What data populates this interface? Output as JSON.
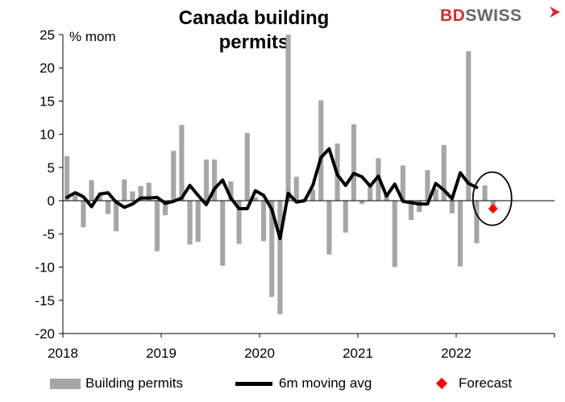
{
  "header": {
    "title": "Canada building permits",
    "logo_text_red": "BD",
    "logo_text_gray": "SWISS"
  },
  "chart_data": {
    "type": "bar",
    "ylabel": "% mom",
    "ylim": [
      -20,
      25
    ],
    "yticks": [
      25,
      20,
      15,
      10,
      5,
      0,
      -5,
      -10,
      -15,
      -20
    ],
    "xlim": [
      "2018-01",
      "2022-12"
    ],
    "xticks": [
      "2018",
      "2019",
      "2020",
      "2021",
      "2022"
    ],
    "grid": false,
    "legend_position": "bottom",
    "colors": {
      "bars": "#a6a6a6",
      "line": "#000000",
      "forecast": "#ff0000",
      "circle": "#000000"
    },
    "series": [
      {
        "name": "Building permits",
        "kind": "bar",
        "months": [
          "2018-01",
          "2018-02",
          "2018-03",
          "2018-04",
          "2018-05",
          "2018-06",
          "2018-07",
          "2018-08",
          "2018-09",
          "2018-10",
          "2018-11",
          "2018-12",
          "2019-01",
          "2019-02",
          "2019-03",
          "2019-04",
          "2019-05",
          "2019-06",
          "2019-07",
          "2019-08",
          "2019-09",
          "2019-10",
          "2019-11",
          "2019-12",
          "2020-01",
          "2020-02",
          "2020-03",
          "2020-04",
          "2020-05",
          "2020-06",
          "2020-07",
          "2020-08",
          "2020-09",
          "2020-10",
          "2020-11",
          "2020-12",
          "2021-01",
          "2021-02",
          "2021-03",
          "2021-04",
          "2021-05",
          "2021-06",
          "2021-07",
          "2021-08",
          "2021-09",
          "2021-10",
          "2021-11",
          "2021-12",
          "2022-01",
          "2022-02",
          "2022-03",
          "2022-04",
          "2022-05"
        ],
        "values": [
          6.7,
          0.8,
          -4.0,
          3.1,
          0.9,
          -2.0,
          -4.6,
          3.2,
          1.4,
          2.2,
          2.7,
          -7.6,
          -2.2,
          7.5,
          11.4,
          -6.6,
          -6.2,
          6.2,
          6.2,
          -9.8,
          2.9,
          -6.5,
          10.2,
          0.5,
          -6.1,
          -14.5,
          -17.1,
          25.0,
          3.6,
          0.3,
          1.7,
          15.1,
          -8.1,
          8.6,
          -4.8,
          11.5,
          -0.5,
          2.1,
          6.4,
          1.2,
          -10.0,
          5.3,
          -2.9,
          -1.7,
          4.6,
          1.8,
          8.4,
          -1.9,
          -9.9,
          22.5,
          -6.4,
          2.3,
          -0.8
        ]
      },
      {
        "name": "6m moving avg",
        "kind": "line",
        "months": [
          "2018-01",
          "2018-02",
          "2018-03",
          "2018-04",
          "2018-05",
          "2018-06",
          "2018-07",
          "2018-08",
          "2018-09",
          "2018-10",
          "2018-11",
          "2018-12",
          "2019-01",
          "2019-02",
          "2019-03",
          "2019-04",
          "2019-05",
          "2019-06",
          "2019-07",
          "2019-08",
          "2019-09",
          "2019-10",
          "2019-11",
          "2019-12",
          "2020-01",
          "2020-02",
          "2020-03",
          "2020-04",
          "2020-05",
          "2020-06",
          "2020-07",
          "2020-08",
          "2020-09",
          "2020-10",
          "2020-11",
          "2020-12",
          "2021-01",
          "2021-02",
          "2021-03",
          "2021-04",
          "2021-05",
          "2021-06",
          "2021-07",
          "2021-08",
          "2021-09",
          "2021-10",
          "2021-11",
          "2021-12",
          "2022-01",
          "2022-02",
          "2022-03",
          "2022-04",
          "2022-05"
        ],
        "values": [
          0.5,
          1.2,
          0.6,
          -0.9,
          1.0,
          1.2,
          -0.2,
          -1.0,
          -0.5,
          0.4,
          0.4,
          0.5,
          -0.4,
          -0.1,
          0.4,
          2.3,
          0.8,
          -0.6,
          1.8,
          3.1,
          0.4,
          -1.2,
          -1.2,
          1.5,
          0.8,
          -1.3,
          -5.7,
          1.1,
          -0.2,
          0.0,
          2.3,
          6.5,
          7.8,
          3.9,
          2.3,
          4.1,
          3.6,
          2.2,
          3.7,
          0.7,
          2.5,
          -0.1,
          -0.3,
          -0.5,
          -0.5,
          2.6,
          1.6,
          0.3,
          4.2,
          2.6,
          2.0,
          null,
          null
        ]
      },
      {
        "name": "Forecast",
        "kind": "marker",
        "months": [
          "2022-05"
        ],
        "values": [
          -1.2
        ]
      }
    ]
  }
}
